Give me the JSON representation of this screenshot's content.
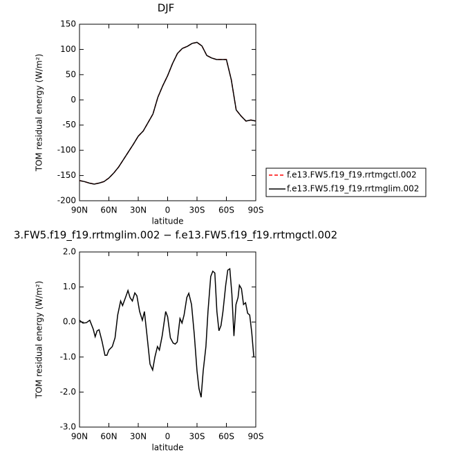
{
  "chart_data": [
    {
      "type": "line",
      "title": "DJF",
      "xlabel": "latitude",
      "ylabel": "TOM residual energy (W/m²)",
      "x": [
        90,
        85,
        80,
        75,
        70,
        65,
        60,
        55,
        50,
        45,
        40,
        35,
        30,
        25,
        20,
        15,
        10,
        5,
        0,
        -5,
        -10,
        -15,
        -20,
        -25,
        -30,
        -35,
        -40,
        -45,
        -50,
        -55,
        -60,
        -65,
        -70,
        -75,
        -80,
        -85,
        -90
      ],
      "series": [
        {
          "name": "f.e13.FW5.f19_f19.rrtmgctl.002",
          "color": "#ff0000",
          "line_style": "dashed",
          "values": [
            -160,
            -162,
            -165,
            -167,
            -165,
            -162,
            -155,
            -145,
            -133,
            -118,
            -103,
            -88,
            -72,
            -62,
            -45,
            -28,
            5,
            28,
            48,
            72,
            92,
            102,
            106,
            112,
            114,
            107,
            88,
            83,
            80,
            80,
            80,
            40,
            -20,
            -32,
            -42,
            -40,
            -42
          ]
        },
        {
          "name": "f.e13.FW5.f19_f19.rrtmglim.002",
          "color": "#000000",
          "line_style": "solid",
          "values": [
            -160,
            -162,
            -165,
            -167,
            -165,
            -162,
            -155,
            -145,
            -133,
            -118,
            -103,
            -88,
            -72,
            -62,
            -45,
            -28,
            5,
            28,
            48,
            72,
            92,
            102,
            106,
            112,
            114,
            107,
            88,
            83,
            80,
            80,
            80,
            40,
            -20,
            -32,
            -42,
            -40,
            -42
          ]
        }
      ],
      "xlim": [
        90,
        -90
      ],
      "xticks": [
        {
          "value": 90,
          "label": "90N"
        },
        {
          "value": 60,
          "label": "60N"
        },
        {
          "value": 30,
          "label": "30N"
        },
        0,
        {
          "value": -30,
          "label": "30S"
        },
        {
          "value": -60,
          "label": "60S"
        },
        {
          "value": -90,
          "label": "90S"
        }
      ],
      "ylim": [
        -200,
        150
      ],
      "yticks": [
        150,
        100,
        50,
        0,
        -50,
        -100,
        -150,
        -200
      ],
      "legend": "right"
    },
    {
      "type": "line",
      "title": "3.FW5.f19_f19.rrtmglim.002 − f.e13.FW5.f19_f19.rrtmgctl.002",
      "xlabel": "latitude",
      "ylabel": "TOM residual energy (W/m²)",
      "x": [
        90,
        86.5,
        83,
        79.5,
        76,
        74,
        72,
        70,
        67,
        64,
        62,
        60,
        56.5,
        53.7,
        51,
        48,
        46,
        43,
        40.5,
        38.4,
        36,
        33.5,
        31.4,
        28.6,
        25.8,
        23.7,
        21,
        18,
        15.3,
        13,
        10.4,
        8.4,
        5.6,
        2,
        0,
        -2.8,
        -5.6,
        -7.7,
        -9.8,
        -12.6,
        -14.7,
        -16.8,
        -19.6,
        -21.6,
        -24.4,
        -27.2,
        -30,
        -32,
        -34.2,
        -36.3,
        -39.1,
        -41.2,
        -44,
        -46.1,
        -48.2,
        -50.3,
        -52.4,
        -54.5,
        -56.5,
        -59.3,
        -61.4,
        -63.5,
        -65.6,
        -67.7,
        -69.8,
        -71.9,
        -73.3,
        -75.4,
        -77.5,
        -79.6,
        -81.7,
        -83.8,
        -85.9,
        -88
      ],
      "values": [
        0.05,
        -0.03,
        -0.02,
        0.05,
        -0.2,
        -0.42,
        -0.25,
        -0.22,
        -0.55,
        -0.95,
        -0.95,
        -0.8,
        -0.7,
        -0.45,
        0.2,
        0.6,
        0.47,
        0.7,
        0.9,
        0.7,
        0.6,
        0.83,
        0.75,
        0.3,
        0.05,
        0.3,
        -0.4,
        -1.2,
        -1.37,
        -1.0,
        -0.7,
        -0.8,
        -0.4,
        0.3,
        0.15,
        -0.45,
        -0.6,
        -0.63,
        -0.57,
        0.1,
        -0.03,
        0.2,
        0.7,
        0.82,
        0.5,
        -0.35,
        -1.4,
        -1.9,
        -2.15,
        -1.4,
        -0.7,
        0.3,
        1.3,
        1.45,
        1.4,
        0.3,
        -0.25,
        -0.1,
        0.3,
        1.05,
        1.48,
        1.52,
        0.8,
        -0.4,
        0.5,
        0.7,
        1.05,
        0.95,
        0.5,
        0.55,
        0.25,
        0.2,
        -0.3,
        -1.0
      ],
      "color": "#000000",
      "xlim": [
        90,
        -90
      ],
      "xticks": [
        {
          "value": 90,
          "label": "90N"
        },
        {
          "value": 60,
          "label": "60N"
        },
        {
          "value": 30,
          "label": "30N"
        },
        0,
        {
          "value": -30,
          "label": "30S"
        },
        {
          "value": -60,
          "label": "60S"
        },
        {
          "value": -90,
          "label": "90S"
        }
      ],
      "ylim": [
        -3,
        2
      ],
      "yticks": [
        {
          "value": 2,
          "label": "2.0"
        },
        {
          "value": 1,
          "label": "1.0"
        },
        {
          "value": 0,
          "label": "0.0"
        },
        {
          "value": -1,
          "label": "-1.0"
        },
        {
          "value": -2,
          "label": "-2.0"
        },
        {
          "value": -3,
          "label": "-3.0"
        }
      ]
    }
  ]
}
